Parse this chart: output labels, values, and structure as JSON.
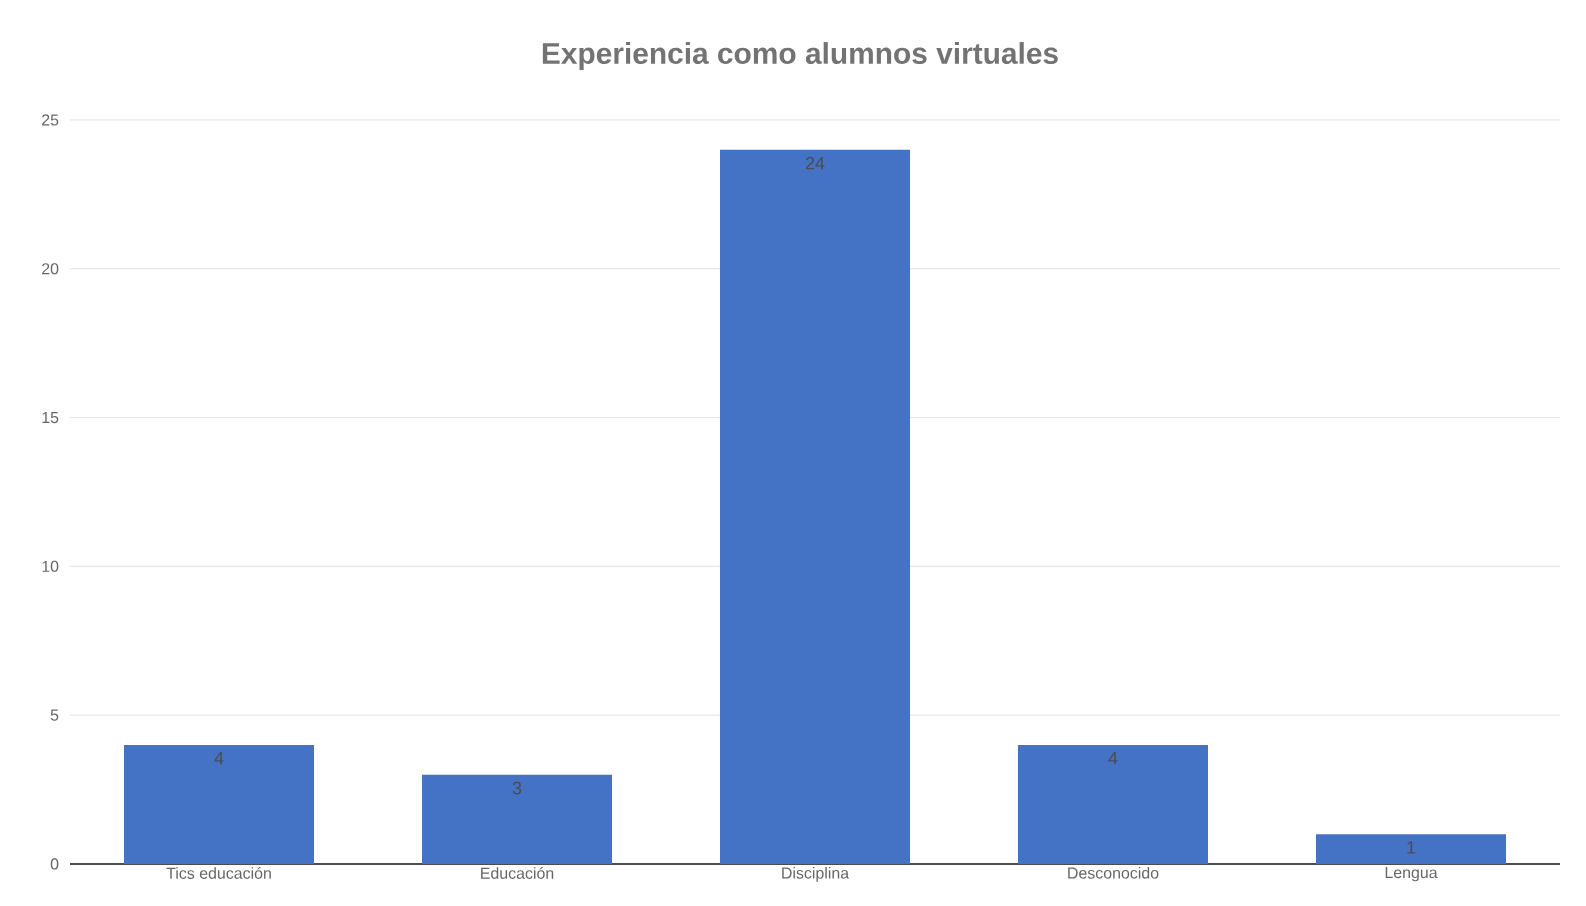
{
  "chart_data": {
    "type": "bar",
    "title": "Experiencia como alumnos virtuales",
    "categories": [
      "Tics educación",
      "Educación",
      "Disciplina",
      "Desconocido",
      "Lengua"
    ],
    "values": [
      4,
      3,
      24,
      4,
      1
    ],
    "color": "#4472c4",
    "ylim": [
      0,
      25
    ],
    "yticks": [
      0,
      5,
      10,
      15,
      20,
      25
    ],
    "grid": "y",
    "data_labels": true
  }
}
